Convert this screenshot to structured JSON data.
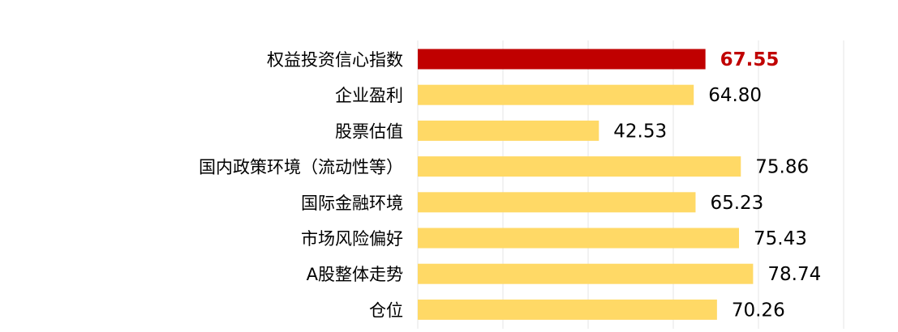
{
  "chart_data": {
    "type": "bar",
    "orientation": "horizontal",
    "categories": [
      "权益投资信心指数",
      "企业盈利",
      "股票估值",
      "国内政策环境（流动性等）",
      "国际金融环境",
      "市场风险偏好",
      "A股整体走势",
      "仓位"
    ],
    "values": [
      67.55,
      64.8,
      42.53,
      75.86,
      65.23,
      75.43,
      78.74,
      70.26
    ],
    "value_labels": [
      "67.55",
      "64.80",
      "42.53",
      "75.86",
      "65.23",
      "75.43",
      "78.74",
      "70.26"
    ],
    "highlight_index": 0,
    "xlim": [
      0,
      100
    ],
    "grid_step": 20,
    "grid": true,
    "colors": {
      "bar": "#ffd966",
      "highlight": "#c00000",
      "grid": "#eeeeee"
    },
    "title": "",
    "xlabel": "",
    "ylabel": ""
  }
}
